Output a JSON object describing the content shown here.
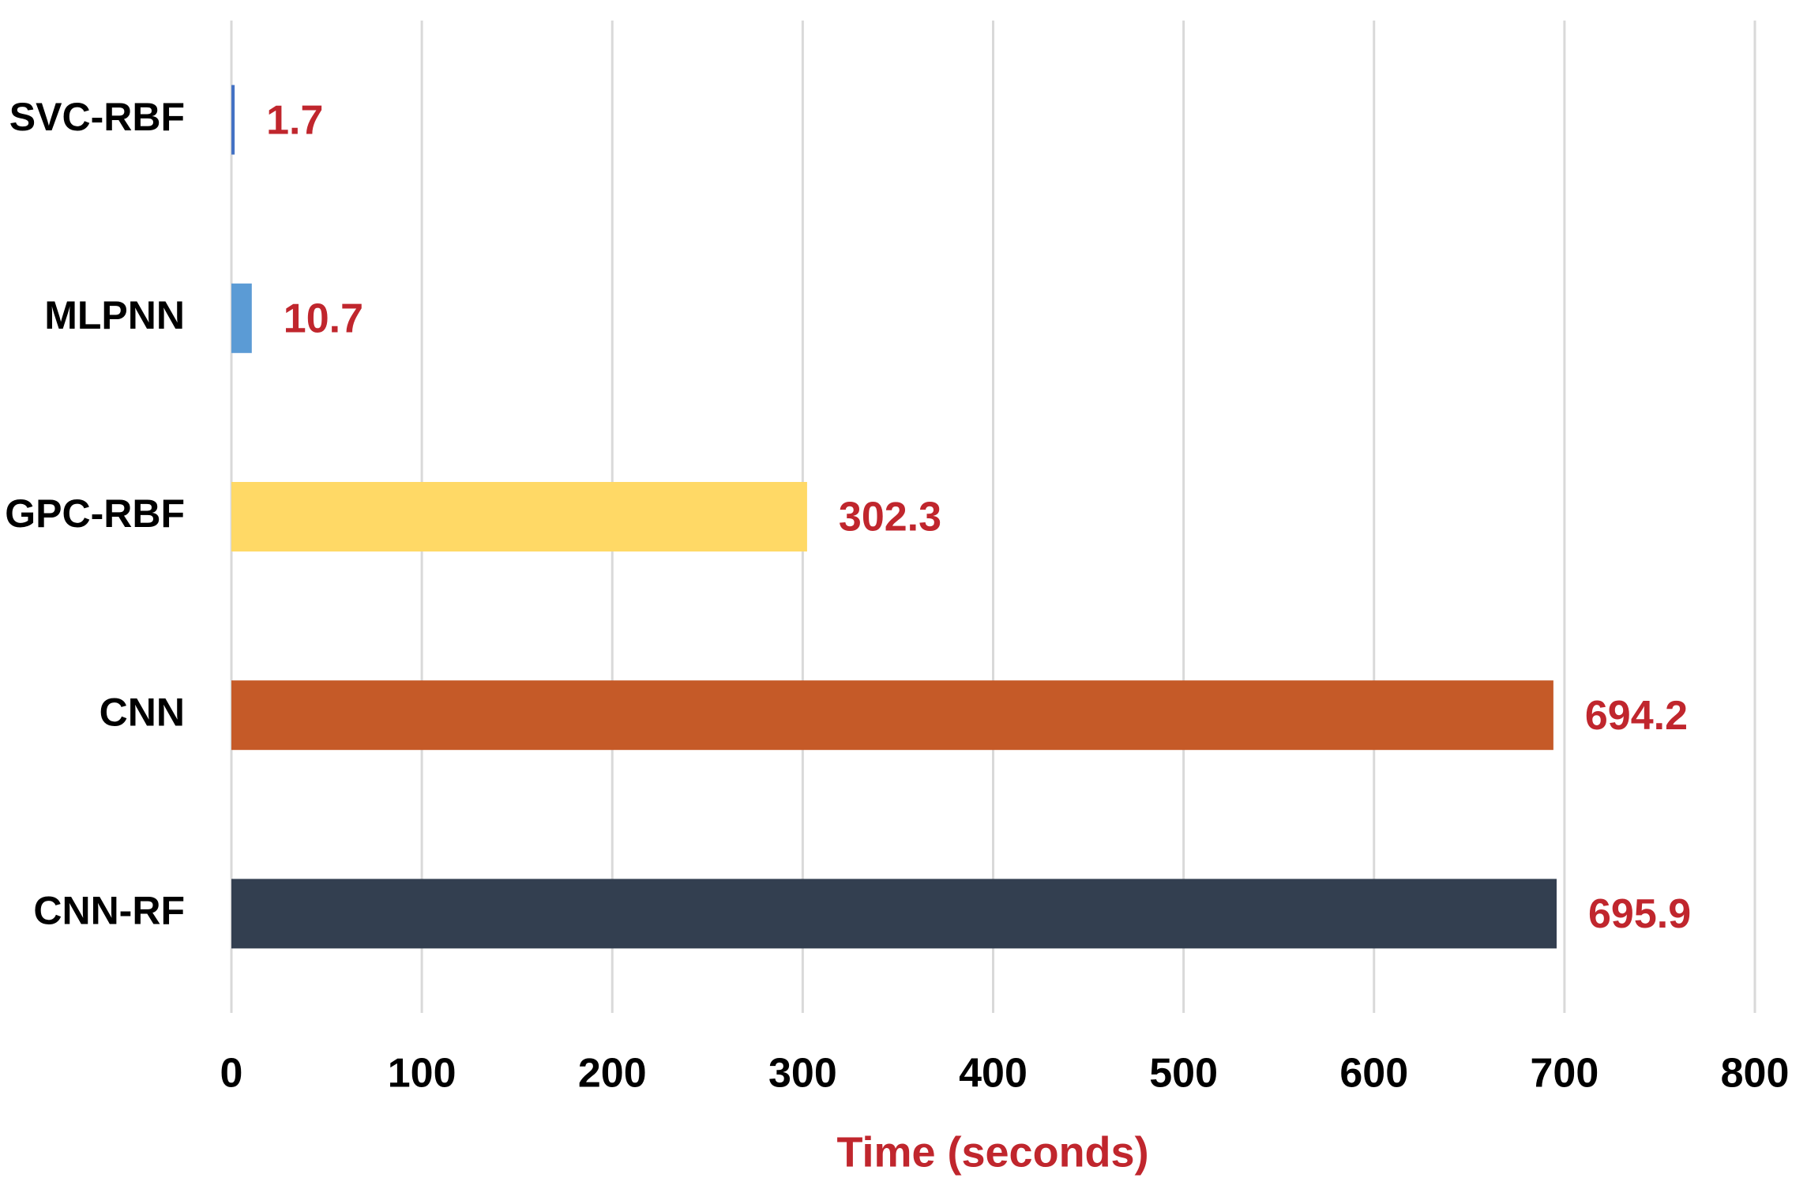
{
  "chart_data": {
    "type": "hbar",
    "categories": [
      "SVC-RBF",
      "MLPNN",
      "GPC-RBF",
      "CNN",
      "CNN-RF"
    ],
    "values": [
      1.7,
      10.7,
      302.3,
      694.2,
      695.9
    ],
    "colors": [
      "#4472c4",
      "#5b9bd5",
      "#ffd966",
      "#c55a28",
      "#333f50"
    ],
    "xlabel": "Time (seconds)",
    "xlim": [
      0,
      800
    ],
    "xticks": [
      0,
      100,
      200,
      300,
      400,
      500,
      600,
      700,
      800
    ],
    "grid": true,
    "grid_color": "#d9d9d9",
    "label_color": "#c0262d"
  }
}
